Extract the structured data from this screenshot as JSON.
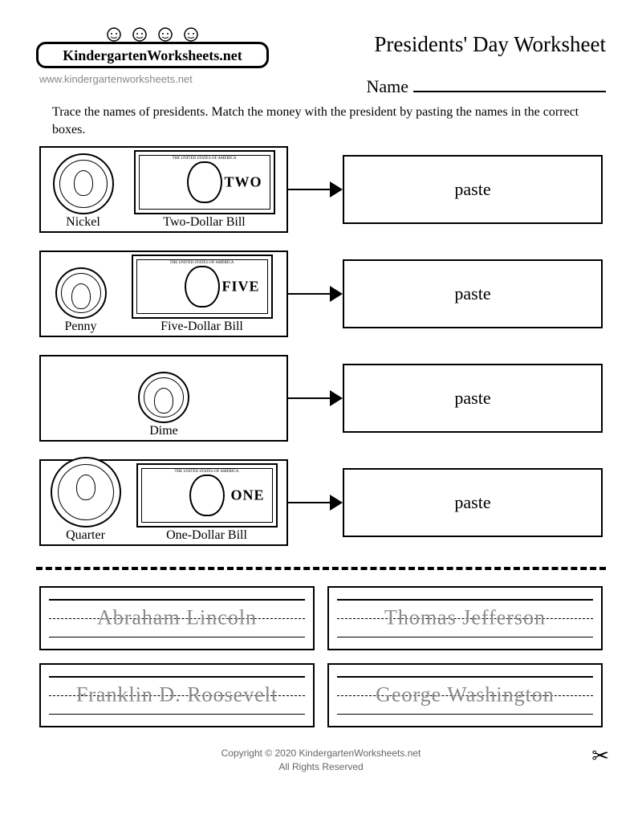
{
  "logo": {
    "text": "KindergartenWorksheets.net"
  },
  "url": "www.kindergartenworksheets.net",
  "title": "Presidents' Day Worksheet",
  "name_label": "Name",
  "instructions": "Trace the names of presidents. Match the money with the president by pasting the names in the correct boxes.",
  "paste_label": "paste",
  "rows": [
    {
      "coin_label": "Nickel",
      "bill_label": "Two-Dollar Bill",
      "bill_denom": "TWO",
      "has_bill": true,
      "coin_size": "coin"
    },
    {
      "coin_label": "Penny",
      "bill_label": "Five-Dollar Bill",
      "bill_denom": "FIVE",
      "has_bill": true,
      "coin_size": "coin-small"
    },
    {
      "coin_label": "Dime",
      "bill_label": "",
      "bill_denom": "",
      "has_bill": false,
      "coin_size": "coin-small"
    },
    {
      "coin_label": "Quarter",
      "bill_label": "One-Dollar Bill",
      "bill_denom": "ONE",
      "has_bill": true,
      "coin_size": "coin-big"
    }
  ],
  "trace_names": [
    "Abraham Lincoln",
    "Thomas Jefferson",
    "Franklin D. Roosevelt",
    "George Washington"
  ],
  "footer": {
    "line1": "Copyright © 2020 KindergartenWorksheets.net",
    "line2": "All Rights Reserved"
  },
  "colors": {
    "text": "#000000",
    "muted": "#888888",
    "background": "#ffffff"
  }
}
